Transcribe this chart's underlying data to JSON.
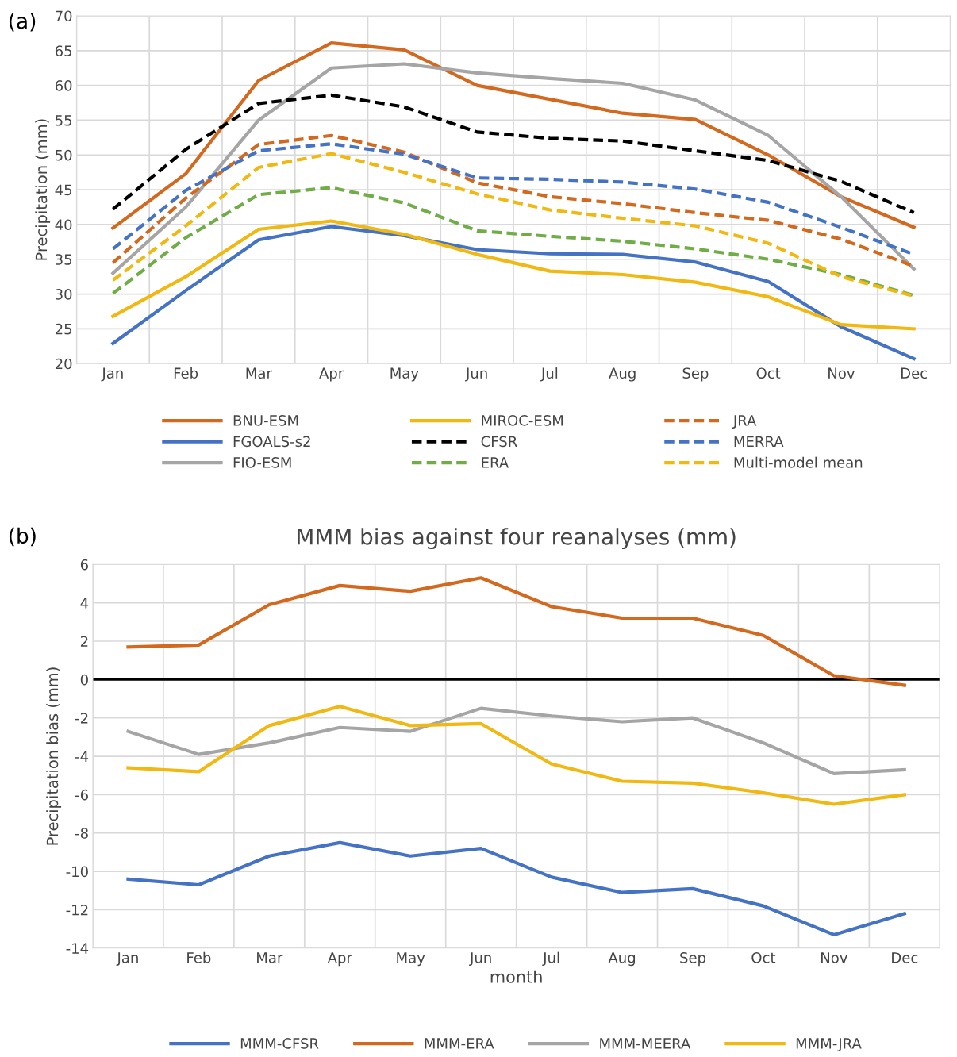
{
  "chart_data": [
    {
      "type": "line",
      "ylabel": "Precipitation (mm)",
      "annotations": [
        "(a)"
      ],
      "categories": [
        "Jan",
        "Feb",
        "Mar",
        "Apr",
        "May",
        "Jun",
        "Jul",
        "Aug",
        "Sep",
        "Oct",
        "Nov",
        "Dec"
      ],
      "ylim": [
        20,
        70
      ],
      "yticks": [
        20,
        25,
        30,
        35,
        40,
        45,
        50,
        55,
        60,
        65,
        70
      ],
      "grid": true,
      "legend": "bottom",
      "series": [
        {
          "name": "BNU-ESM",
          "color": "#d2691e",
          "line_style": "solid",
          "values": [
            39.5,
            47.3,
            60.7,
            66.1,
            65.1,
            60,
            58,
            56,
            55.1,
            50,
            44,
            39.6
          ]
        },
        {
          "name": "FGOALS-s2",
          "color": "#4472c4",
          "line_style": "solid",
          "values": [
            22.9,
            30.5,
            37.8,
            39.7,
            38.4,
            36.4,
            35.8,
            35.7,
            34.6,
            31.8,
            25.3,
            20.7
          ]
        },
        {
          "name": "FIO-ESM",
          "color": "#a5a5a5",
          "line_style": "solid",
          "values": [
            33,
            42.5,
            55,
            62.5,
            63.1,
            61.8,
            61,
            60.3,
            57.9,
            52.8,
            44,
            33.6
          ]
        },
        {
          "name": "MIROC-ESM",
          "color": "#f0b810",
          "line_style": "solid",
          "values": [
            26.8,
            32.5,
            39.3,
            40.5,
            38.6,
            35.7,
            33.3,
            32.8,
            31.7,
            29.6,
            25.6,
            25
          ]
        },
        {
          "name": "CFSR",
          "color": "#000000",
          "line_style": "dashed",
          "values": [
            42.2,
            50.8,
            57.4,
            58.6,
            56.9,
            53.3,
            52.4,
            52,
            50.6,
            49.2,
            46.2,
            41.7
          ]
        },
        {
          "name": "ERA",
          "color": "#70ad47",
          "line_style": "dashed",
          "values": [
            30.1,
            38.1,
            44.3,
            45.3,
            43.1,
            39.1,
            38.3,
            37.6,
            36.5,
            35,
            32.8,
            29.8
          ]
        },
        {
          "name": "JRA",
          "color": "#d2691e",
          "line_style": "dashed",
          "values": [
            34.5,
            43.8,
            51.5,
            52.8,
            50.4,
            46,
            44,
            43,
            41.7,
            40.6,
            37.9,
            34
          ]
        },
        {
          "name": "MERRA",
          "color": "#4472c4",
          "line_style": "dashed",
          "values": [
            36.5,
            44.9,
            50.6,
            51.6,
            50.1,
            46.7,
            46.5,
            46.1,
            45.1,
            43.2,
            39.6,
            35.7
          ]
        },
        {
          "name": "Multi-model mean",
          "color": "#f0b810",
          "line_style": "dashed",
          "values": [
            32,
            39.8,
            48.2,
            50.2,
            47.5,
            44.4,
            42.1,
            40.9,
            39.8,
            37.3,
            32.5,
            29.7
          ]
        }
      ]
    },
    {
      "type": "line",
      "title": "MMM bias against four reanalyses (mm)",
      "ylabel": "Precipitation bias (mm)",
      "xlabel": "month",
      "annotations": [
        "(b)"
      ],
      "categories": [
        "Jan",
        "Feb",
        "Mar",
        "Apr",
        "May",
        "Jun",
        "Jul",
        "Aug",
        "Sep",
        "Oct",
        "Nov",
        "Dec"
      ],
      "ylim": [
        -14,
        6
      ],
      "yticks": [
        -14,
        -12,
        -10,
        -8,
        -6,
        -4,
        -2,
        0,
        2,
        4,
        6
      ],
      "grid": true,
      "legend": "bottom",
      "ref_lines": [
        {
          "axis": "y",
          "value": 0,
          "color": "#000000"
        }
      ],
      "series": [
        {
          "name": "MMM-CFSR",
          "color": "#4472c4",
          "values": [
            -10.4,
            -10.7,
            -9.2,
            -8.5,
            -9.2,
            -8.8,
            -10.3,
            -11.1,
            -10.9,
            -11.8,
            -13.3,
            -12.2
          ]
        },
        {
          "name": "MMM-ERA",
          "color": "#d2691e",
          "values": [
            1.7,
            1.8,
            3.9,
            4.9,
            4.6,
            5.3,
            3.8,
            3.2,
            3.2,
            2.3,
            0.2,
            -0.3
          ]
        },
        {
          "name": "MMM-MEERA",
          "color": "#a5a5a5",
          "values": [
            -2.7,
            -3.9,
            -3.3,
            -2.5,
            -2.7,
            -1.5,
            -1.9,
            -2.2,
            -2,
            -3.3,
            -4.9,
            -4.7
          ]
        },
        {
          "name": "MMM-JRA",
          "color": "#f0b810",
          "values": [
            -4.6,
            -4.8,
            -2.4,
            -1.4,
            -2.4,
            -2.3,
            -4.4,
            -5.3,
            -5.4,
            -5.9,
            -6.5,
            -6
          ]
        }
      ]
    }
  ]
}
